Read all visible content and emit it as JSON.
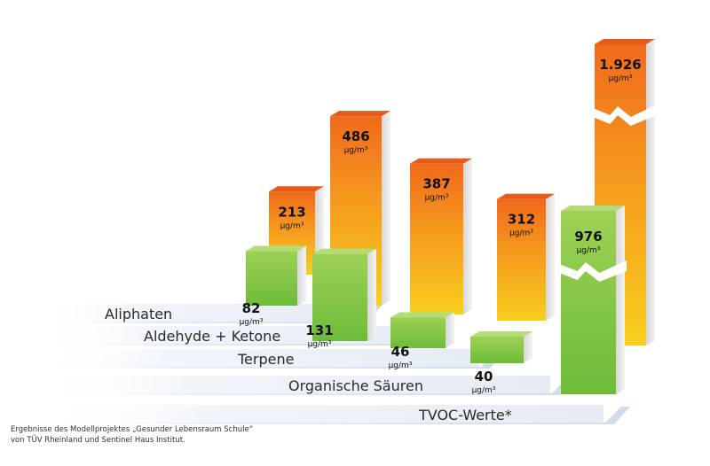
{
  "chart_data": {
    "type": "bar",
    "categories": [
      "Aliphaten",
      "Aldehyde + Ketone",
      "Terpene",
      "Organische Säuren",
      "TVOC-Werte*"
    ],
    "unit": "µg/m³",
    "series": [
      {
        "values": [
          82,
          131,
          46,
          40,
          976
        ],
        "labels": [
          "82",
          "131",
          "46",
          "40",
          "976"
        ],
        "color": "#7cc242"
      },
      {
        "values": [
          213,
          486,
          387,
          312,
          1926
        ],
        "labels": [
          "213",
          "486",
          "387",
          "312",
          "1.926"
        ],
        "color": "#f5a623"
      }
    ],
    "broken_axis_category": "TVOC-Werte*"
  },
  "caption": {
    "line1": "Ergebnisse des Modellprojektes „Gesunder Lebensraum Schule“",
    "line2": "von TÜV Rheinland und Sentinel Haus Institut."
  },
  "colors": {
    "green_front": "#86c94a",
    "orange_top": "#f07a1e",
    "orange_bottom": "#f7c31c",
    "band": "#e4edf6"
  }
}
